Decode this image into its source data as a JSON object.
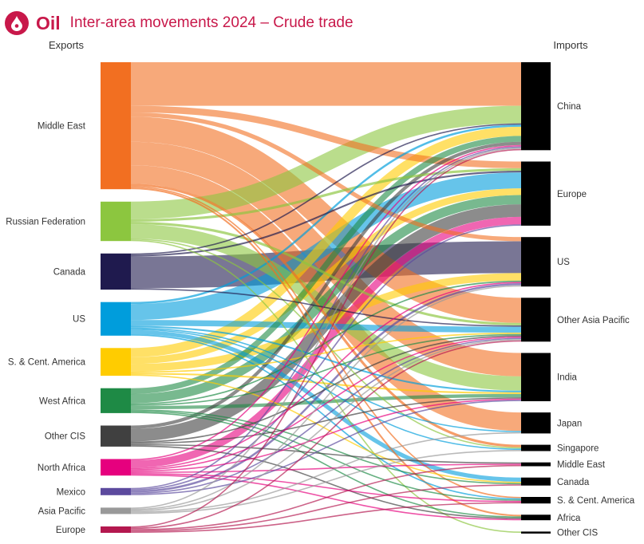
{
  "header": {
    "brand": "Oil",
    "title": "Inter-area movements 2024 – Crude trade",
    "icon": "oil-drop-icon",
    "brand_color": "#c8184a"
  },
  "chart_data": {
    "type": "sankey",
    "title": "Inter-area movements 2024 – Crude trade",
    "left_heading": "Exports",
    "right_heading": "Imports",
    "unit": "",
    "exporters": [
      {
        "name": "Middle East",
        "color": "#f26f21"
      },
      {
        "name": "Russian Federation",
        "color": "#8cc63f"
      },
      {
        "name": "Canada",
        "color": "#1f1a4e"
      },
      {
        "name": "US",
        "color": "#009ddc"
      },
      {
        "name": "S. & Cent. America",
        "color": "#ffcc00"
      },
      {
        "name": "West Africa",
        "color": "#1e8a45"
      },
      {
        "name": "Other CIS",
        "color": "#404040"
      },
      {
        "name": "North Africa",
        "color": "#e6007e"
      },
      {
        "name": "Mexico",
        "color": "#5c4a9e"
      },
      {
        "name": "Asia Pacific",
        "color": "#999999"
      },
      {
        "name": "Europe",
        "color": "#b4184f"
      }
    ],
    "importers": [
      "China",
      "Europe",
      "US",
      "Other Asia Pacific",
      "India",
      "Japan",
      "Singapore",
      "Middle East",
      "Canada",
      "S. & Cent. America",
      "Africa",
      "Other CIS"
    ],
    "flows": [
      {
        "from": "Middle East",
        "to": "China",
        "value": 260
      },
      {
        "from": "Middle East",
        "to": "Europe",
        "value": 40
      },
      {
        "from": "Middle East",
        "to": "US",
        "value": 25
      },
      {
        "from": "Middle East",
        "to": "Other Asia Pacific",
        "value": 150
      },
      {
        "from": "Middle East",
        "to": "India",
        "value": 140
      },
      {
        "from": "Middle East",
        "to": "Japan",
        "value": 110
      },
      {
        "from": "Middle East",
        "to": "Singapore",
        "value": 15
      },
      {
        "from": "Middle East",
        "to": "S. & Cent. America",
        "value": 8
      },
      {
        "from": "Middle East",
        "to": "Africa",
        "value": 10
      },
      {
        "from": "Russian Federation",
        "to": "China",
        "value": 105
      },
      {
        "from": "Russian Federation",
        "to": "India",
        "value": 85
      },
      {
        "from": "Russian Federation",
        "to": "Europe",
        "value": 15
      },
      {
        "from": "Russian Federation",
        "to": "Other Asia Pacific",
        "value": 15
      },
      {
        "from": "Russian Federation",
        "to": "Singapore",
        "value": 3
      },
      {
        "from": "Russian Federation",
        "to": "Other CIS",
        "value": 5
      },
      {
        "from": "Canada",
        "to": "US",
        "value": 190
      },
      {
        "from": "Canada",
        "to": "China",
        "value": 8
      },
      {
        "from": "Canada",
        "to": "Europe",
        "value": 10
      },
      {
        "from": "Canada",
        "to": "Other Asia Pacific",
        "value": 5
      },
      {
        "from": "US",
        "to": "Europe",
        "value": 95
      },
      {
        "from": "US",
        "to": "China",
        "value": 12
      },
      {
        "from": "US",
        "to": "Other Asia Pacific",
        "value": 35
      },
      {
        "from": "US",
        "to": "India",
        "value": 10
      },
      {
        "from": "US",
        "to": "Japan",
        "value": 5
      },
      {
        "from": "US",
        "to": "Singapore",
        "value": 6
      },
      {
        "from": "US",
        "to": "Canada",
        "value": 25
      },
      {
        "from": "US",
        "to": "S. & Cent. America",
        "value": 8
      },
      {
        "from": "S. & Cent. America",
        "to": "China",
        "value": 55
      },
      {
        "from": "S. & Cent. America",
        "to": "US",
        "value": 45
      },
      {
        "from": "S. & Cent. America",
        "to": "Europe",
        "value": 40
      },
      {
        "from": "S. & Cent. America",
        "to": "Other Asia Pacific",
        "value": 8
      },
      {
        "from": "S. & Cent. America",
        "to": "India",
        "value": 10
      },
      {
        "from": "S. & Cent. America",
        "to": "Canada",
        "value": 3
      },
      {
        "from": "West Africa",
        "to": "Europe",
        "value": 55
      },
      {
        "from": "West Africa",
        "to": "China",
        "value": 35
      },
      {
        "from": "West Africa",
        "to": "India",
        "value": 20
      },
      {
        "from": "West Africa",
        "to": "US",
        "value": 8
      },
      {
        "from": "West Africa",
        "to": "Other Asia Pacific",
        "value": 6
      },
      {
        "from": "West Africa",
        "to": "Canada",
        "value": 4
      },
      {
        "from": "West Africa",
        "to": "S. & Cent. America",
        "value": 3
      },
      {
        "from": "West Africa",
        "to": "Africa",
        "value": 4
      },
      {
        "from": "Other CIS",
        "to": "Europe",
        "value": 75
      },
      {
        "from": "Other CIS",
        "to": "China",
        "value": 20
      },
      {
        "from": "Other CIS",
        "to": "Other Asia Pacific",
        "value": 8
      },
      {
        "from": "Other CIS",
        "to": "India",
        "value": 6
      },
      {
        "from": "Other CIS",
        "to": "Middle East",
        "value": 3
      },
      {
        "from": "Other CIS",
        "to": "Africa",
        "value": 2
      },
      {
        "from": "North Africa",
        "to": "Europe",
        "value": 45
      },
      {
        "from": "North Africa",
        "to": "China",
        "value": 6
      },
      {
        "from": "North Africa",
        "to": "US",
        "value": 3
      },
      {
        "from": "North Africa",
        "to": "Other Asia Pacific",
        "value": 3
      },
      {
        "from": "North Africa",
        "to": "India",
        "value": 3
      },
      {
        "from": "North Africa",
        "to": "Middle East",
        "value": 3
      },
      {
        "from": "North Africa",
        "to": "S. & Cent. America",
        "value": 2
      },
      {
        "from": "North Africa",
        "to": "Africa",
        "value": 2
      },
      {
        "from": "Mexico",
        "to": "US",
        "value": 12
      },
      {
        "from": "Mexico",
        "to": "Europe",
        "value": 8
      },
      {
        "from": "Mexico",
        "to": "China",
        "value": 3
      },
      {
        "from": "Mexico",
        "to": "Other Asia Pacific",
        "value": 3
      },
      {
        "from": "Mexico",
        "to": "India",
        "value": 3
      },
      {
        "from": "Asia Pacific",
        "to": "China",
        "value": 6
      },
      {
        "from": "Asia Pacific",
        "to": "Other Asia Pacific",
        "value": 5
      },
      {
        "from": "Asia Pacific",
        "to": "Singapore",
        "value": 2
      },
      {
        "from": "Asia Pacific",
        "to": "US",
        "value": 2
      },
      {
        "from": "Asia Pacific",
        "to": "Japan",
        "value": 1
      },
      {
        "from": "Europe",
        "to": "China",
        "value": 3
      },
      {
        "from": "Europe",
        "to": "Other Asia Pacific",
        "value": 3
      },
      {
        "from": "Europe",
        "to": "Middle East",
        "value": 2
      },
      {
        "from": "Europe",
        "to": "S. & Cent. America",
        "value": 2
      },
      {
        "from": "Europe",
        "to": "Canada",
        "value": 2
      }
    ]
  }
}
